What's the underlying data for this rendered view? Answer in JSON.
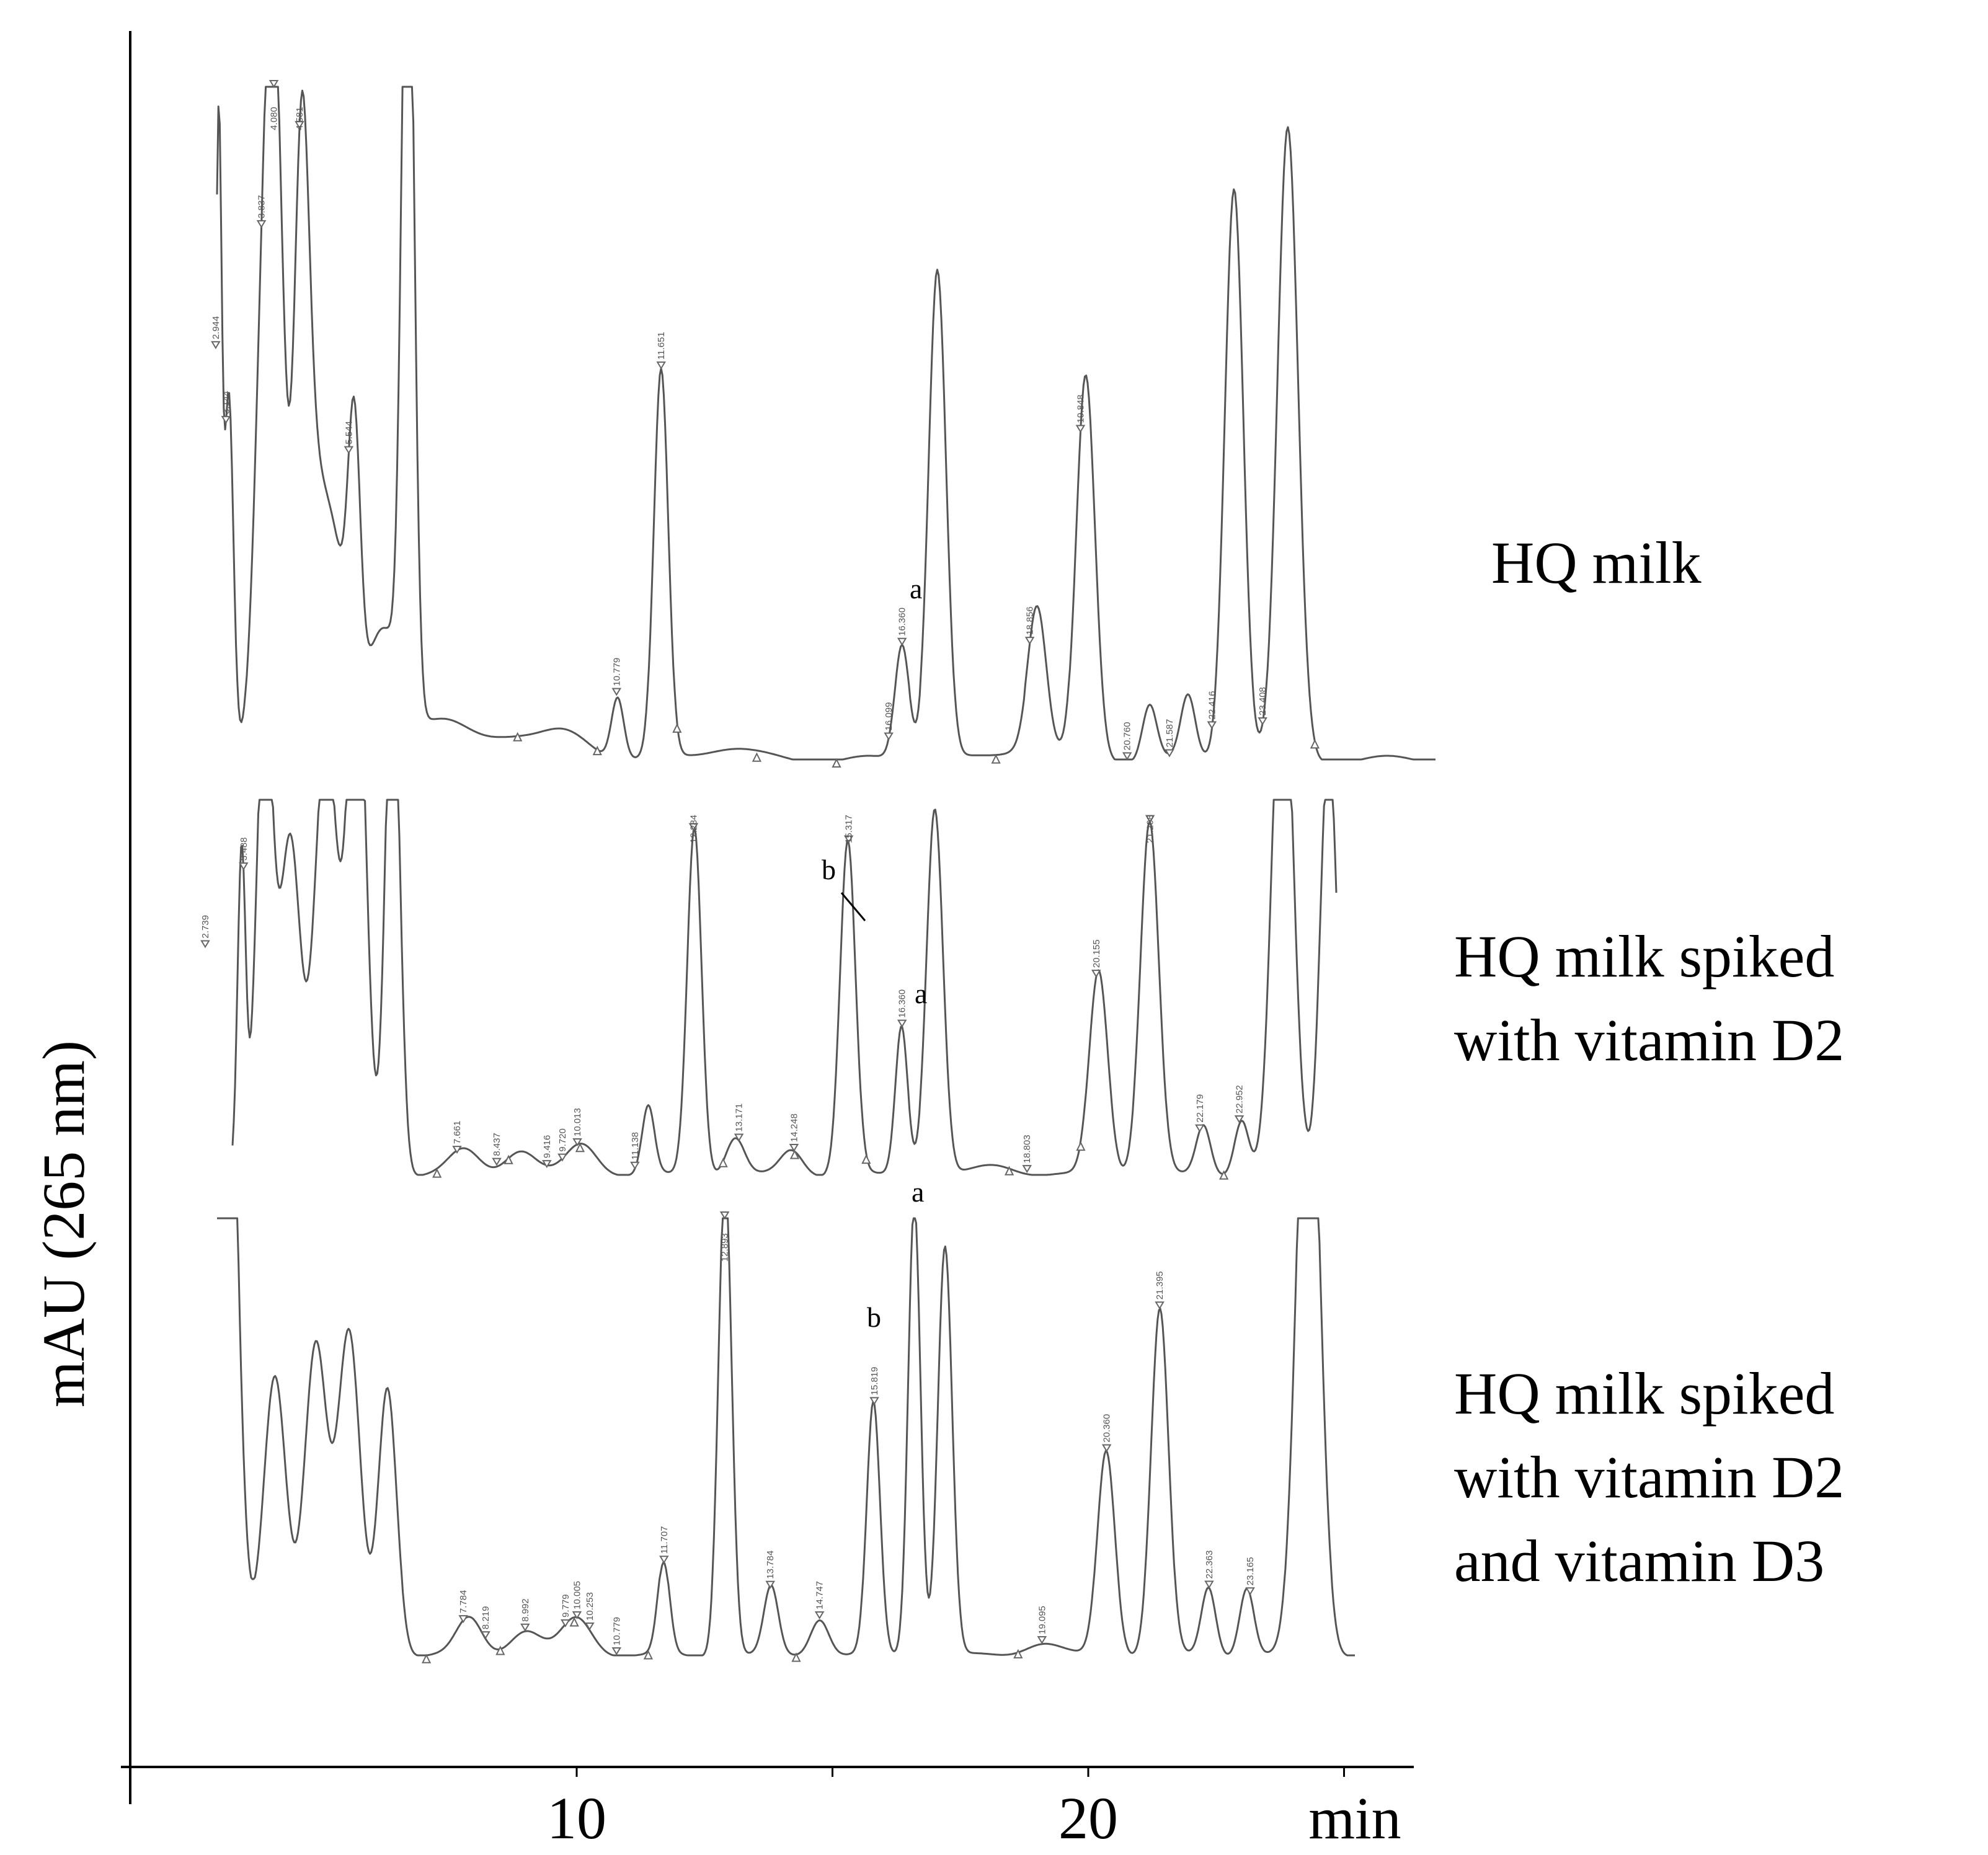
{
  "chart_data": {
    "type": "line",
    "title": "",
    "xlabel": "min",
    "ylabel": "mAU (265 nm)",
    "xlim": [
      1.0,
      26.0
    ],
    "x_ticks": [
      10,
      20
    ],
    "x_tick_labels": [
      "10",
      "20"
    ],
    "x_unit_label": "min",
    "grid": false,
    "series": [
      {
        "name": "HQ milk",
        "label_lines": [
          "HQ milk"
        ],
        "peaks": [
          {
            "t": 2.944,
            "label": "2.944"
          },
          {
            "t": 3.144,
            "label": "3.144"
          },
          {
            "t": 3.837,
            "label": "3.837"
          },
          {
            "t": 4.08,
            "label": "4.080"
          },
          {
            "t": 4.581,
            "label": "4.581"
          },
          {
            "t": 5.544,
            "label": "5.544"
          },
          {
            "t": 10.779,
            "label": "10.779"
          },
          {
            "t": 11.651,
            "label": "11.651"
          },
          {
            "t": 16.36,
            "label": "16.360"
          },
          {
            "t": 16.099,
            "label": "16.099"
          },
          {
            "t": 18.856,
            "label": "18.856"
          },
          {
            "t": 19.848,
            "label": "19.848"
          },
          {
            "t": 20.76,
            "label": "20.760"
          },
          {
            "t": 21.587,
            "label": "21.587"
          },
          {
            "t": 22.416,
            "label": "22.416"
          },
          {
            "t": 23.408,
            "label": "23.408"
          }
        ],
        "annotations": [
          {
            "text": "a",
            "near": "16.360"
          }
        ]
      },
      {
        "name": "HQ milk spiked with vitamin D2",
        "label_lines": [
          "HQ milk spiked",
          "with vitamin D2"
        ],
        "peaks": [
          {
            "t": 2.739,
            "label": "2.739"
          },
          {
            "t": 3.488,
            "label": "3.488"
          },
          {
            "t": 7.661,
            "label": "7.661"
          },
          {
            "t": 8.437,
            "label": "8.437"
          },
          {
            "t": 9.416,
            "label": "9.416"
          },
          {
            "t": 9.72,
            "label": "9.720"
          },
          {
            "t": 10.013,
            "label": "10.013"
          },
          {
            "t": 11.138,
            "label": "11.138"
          },
          {
            "t": 12.284,
            "label": "12.284"
          },
          {
            "t": 13.171,
            "label": "13.171"
          },
          {
            "t": 14.248,
            "label": "14.248"
          },
          {
            "t": 15.317,
            "label": "15.317"
          },
          {
            "t": 16.36,
            "label": "16.360"
          },
          {
            "t": 18.803,
            "label": "18.803"
          },
          {
            "t": 20.155,
            "label": "20.155"
          },
          {
            "t": 21.208,
            "label": "21.208"
          },
          {
            "t": 22.179,
            "label": "22.179"
          },
          {
            "t": 22.952,
            "label": "22.952"
          }
        ],
        "annotations": [
          {
            "text": "b",
            "near": "15.317"
          },
          {
            "text": "a",
            "near": "16.360"
          }
        ]
      },
      {
        "name": "HQ milk spiked with vitamin D2 and vitamin D3",
        "label_lines": [
          "HQ milk spiked",
          "with vitamin D2",
          "and vitamin D3"
        ],
        "peaks": [
          {
            "t": 7.784,
            "label": "7.784"
          },
          {
            "t": 8.219,
            "label": "8.219"
          },
          {
            "t": 8.992,
            "label": "8.992"
          },
          {
            "t": 9.779,
            "label": "9.779"
          },
          {
            "t": 10.005,
            "label": "10.005"
          },
          {
            "t": 10.253,
            "label": "10.253"
          },
          {
            "t": 10.779,
            "label": "10.779"
          },
          {
            "t": 11.707,
            "label": "11.707"
          },
          {
            "t": 12.893,
            "label": "12.893"
          },
          {
            "t": 13.784,
            "label": "13.784"
          },
          {
            "t": 14.747,
            "label": "14.747"
          },
          {
            "t": 15.819,
            "label": "15.819"
          },
          {
            "t": 19.095,
            "label": "19.095"
          },
          {
            "t": 20.36,
            "label": "20.360"
          },
          {
            "t": 21.395,
            "label": "21.395"
          },
          {
            "t": 22.363,
            "label": "22.363"
          },
          {
            "t": 23.165,
            "label": "23.165"
          }
        ],
        "annotations": [
          {
            "text": "a",
            "near": "16.3"
          },
          {
            "text": "b",
            "near": "15.819"
          }
        ]
      }
    ]
  }
}
